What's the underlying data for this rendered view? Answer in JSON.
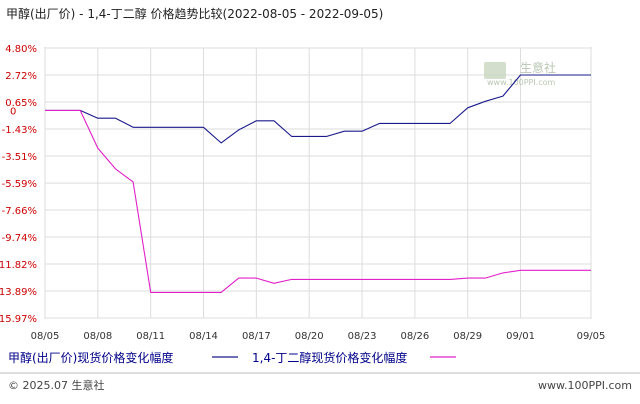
{
  "chart_data": {
    "type": "line",
    "title": "甲醇(出厂价) - 1,4-丁二醇 价格趋势比较(2022-08-05 - 2022-09-05)",
    "xlabel": "",
    "ylabel": "",
    "x_ticks": [
      "08/05",
      "08/08",
      "08/11",
      "08/14",
      "08/17",
      "08/20",
      "08/23",
      "08/26",
      "08/29",
      "09/01",
      "09/05"
    ],
    "y_ticks": [
      "4.80%",
      "2.72%",
      "0.65%",
      "0",
      "-1.43%",
      "-3.51%",
      "-5.59%",
      "-7.66%",
      "-9.74%",
      "-11.82%",
      "-13.89%",
      "-15.97%"
    ],
    "ylim": [
      -15.97,
      4.8
    ],
    "xlim": [
      "08/05",
      "09/05"
    ],
    "grid": true,
    "legend_position": "bottom",
    "x": [
      "08/05",
      "08/06",
      "08/07",
      "08/08",
      "08/09",
      "08/10",
      "08/11",
      "08/12",
      "08/13",
      "08/14",
      "08/15",
      "08/16",
      "08/17",
      "08/18",
      "08/19",
      "08/20",
      "08/21",
      "08/22",
      "08/23",
      "08/24",
      "08/25",
      "08/26",
      "08/27",
      "08/28",
      "08/29",
      "08/30",
      "08/31",
      "09/01",
      "09/02",
      "09/03",
      "09/04",
      "09/05"
    ],
    "series": [
      {
        "name": "甲醇(出厂价)现货价格变化幅度",
        "color": "#1a1a8c",
        "values": [
          0,
          0,
          0,
          -0.6,
          -0.6,
          -1.3,
          -1.3,
          -1.3,
          -1.3,
          -1.3,
          -2.5,
          -1.5,
          -0.8,
          -0.8,
          -2.0,
          -2.0,
          -2.0,
          -1.6,
          -1.6,
          -1.0,
          -1.0,
          -1.0,
          -1.0,
          -1.0,
          0.2,
          0.7,
          1.1,
          2.72,
          2.72,
          2.72,
          2.72,
          2.72
        ]
      },
      {
        "name": "1,4-丁二醇现货价格变化幅度",
        "color": "#e020c8",
        "values": [
          0,
          0,
          0,
          -2.9,
          -4.5,
          -5.5,
          -14.0,
          -14.0,
          -14.0,
          -14.0,
          -14.0,
          -12.9,
          -12.9,
          -13.3,
          -13.0,
          -13.0,
          -13.0,
          -13.0,
          -13.0,
          -13.0,
          -13.0,
          -13.0,
          -13.0,
          -13.0,
          -12.9,
          -12.9,
          -12.5,
          -12.3,
          -12.3,
          -12.3,
          -12.3,
          -12.3
        ]
      }
    ]
  },
  "watermark": {
    "logo_text": "生意社",
    "url": "www.100PPI.com"
  },
  "footer": {
    "copyright": "© 2025.07 生意社",
    "url": "www.100PPI.com"
  }
}
